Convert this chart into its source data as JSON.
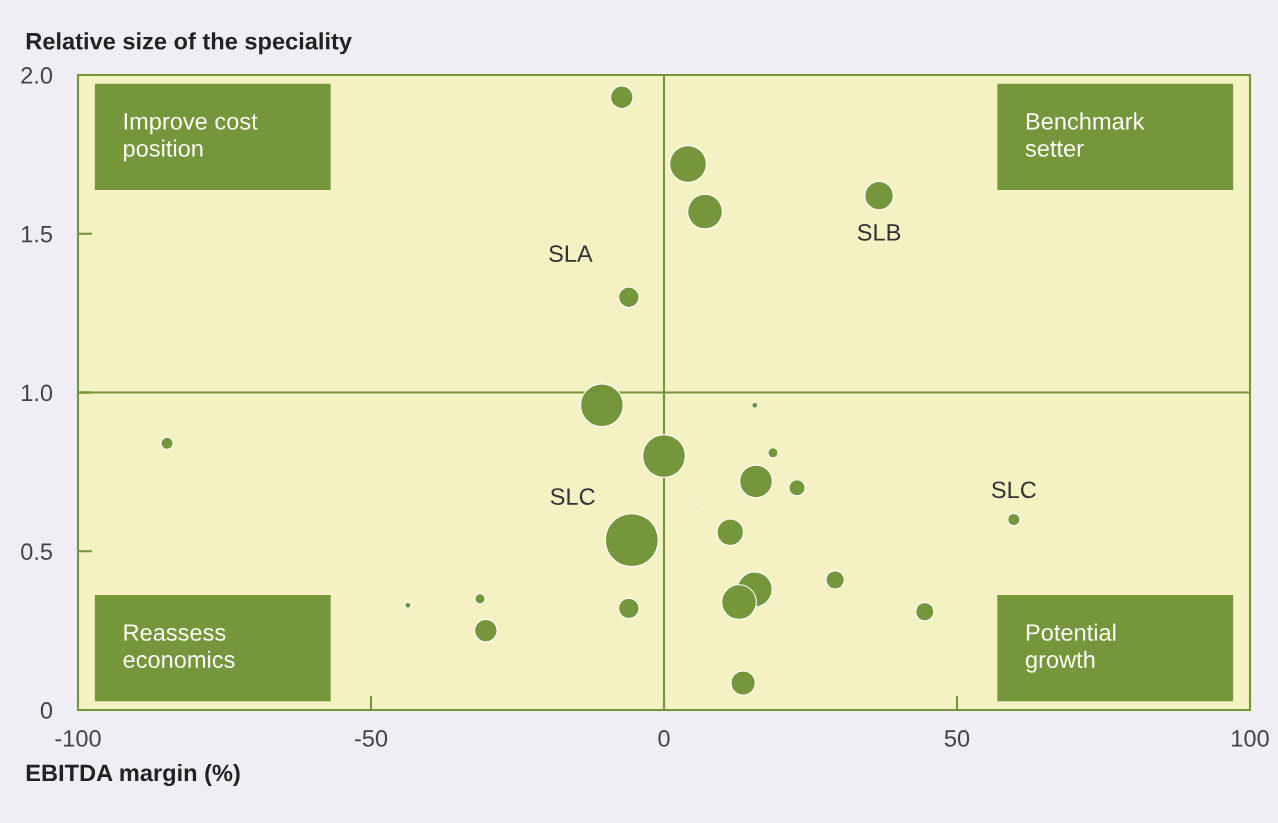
{
  "chart_data": {
    "type": "bubble",
    "xlabel": "EBITDA margin (%)",
    "ylabel": "Relative size of the speciality",
    "x": [
      -7.2,
      4.1,
      7.0,
      36.7,
      -6.0,
      -10.6,
      -84.8,
      0,
      15.5,
      18.6,
      15.7,
      22.7,
      5.8,
      11.3,
      -5.5,
      59.7,
      29.2,
      15.5,
      12.8,
      44.5,
      -6.0,
      -31.4,
      -30.4,
      -43.7,
      13.5
    ],
    "values": [
      1.93,
      1.72,
      1.57,
      1.62,
      1.3,
      0.96,
      0.84,
      0.8,
      0.96,
      0.81,
      0.72,
      0.7,
      0.65,
      0.56,
      0.535,
      0.6,
      0.41,
      0.38,
      0.34,
      0.31,
      0.32,
      0.35,
      0.25,
      0.33,
      0.085
    ],
    "sizes": [
      0.18,
      0.48,
      0.43,
      0.29,
      0.15,
      0.65,
      0.053,
      0.65,
      0.013,
      0.037,
      0.38,
      0.095,
      0.0015,
      0.25,
      1,
      0.053,
      0.12,
      0.43,
      0.43,
      0.12,
      0.15,
      0.037,
      0.18,
      0.013,
      0.21
    ],
    "color": "#76963c",
    "xlim": [
      -100,
      100
    ],
    "ylim": [
      0,
      2
    ],
    "xticks": [
      -100,
      -50,
      0,
      50,
      100
    ],
    "yticks": [
      0,
      {
        "value": 0.5,
        "label": "0.5"
      },
      {
        "value": 1,
        "label": "1.0"
      },
      {
        "value": 1.5,
        "label": "1.5"
      },
      {
        "value": 2,
        "label": "2.0"
      }
    ],
    "ref_lines": [
      {
        "axis": "x",
        "value": 0,
        "color": "#76963c"
      },
      {
        "axis": "y",
        "value": 1,
        "color": "#76963c"
      }
    ],
    "annotations": [
      "Improve cost\nposition",
      "Benchmark\nsetter",
      "Reassess\neconomics",
      "Potential\ngrowth",
      {
        "text": "SLA",
        "x": -6.0,
        "y": 1.3
      },
      {
        "text": "SLB",
        "x": 36.7,
        "y": 1.62
      },
      {
        "text": "SLC",
        "x": -5.5,
        "y": 0.535
      },
      {
        "text": "SLC",
        "x": 59.7,
        "y": 0.6
      }
    ],
    "grid": false,
    "legend": false
  }
}
